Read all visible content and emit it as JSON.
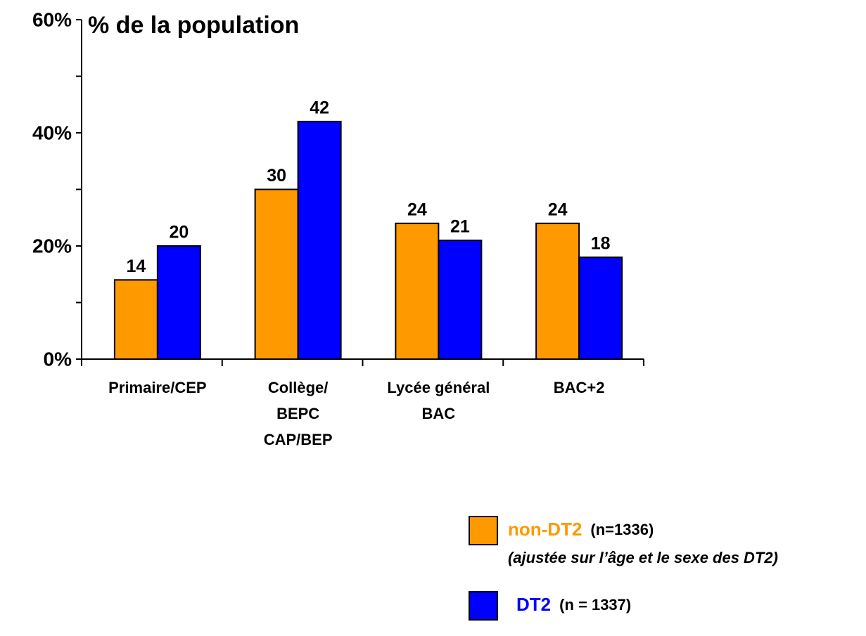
{
  "chart_data": {
    "type": "bar",
    "title": "% de la population",
    "categories": [
      [
        "Primaire/CEP"
      ],
      [
        "Collège/",
        "BEPC",
        "CAP/BEP"
      ],
      [
        "Lycée général",
        "BAC"
      ],
      [
        "BAC+2"
      ]
    ],
    "series": [
      {
        "name": "non-DT2",
        "n_label": "(n=1336)",
        "note": "(ajustée sur l’âge et le sexe des DT2)",
        "color": "#ff9900",
        "values": [
          14,
          30,
          24,
          24
        ]
      },
      {
        "name": "DT2",
        "n_label": "(n = 1337)",
        "color": "#0000ff",
        "values": [
          20,
          42,
          21,
          18
        ]
      }
    ],
    "ylim": [
      0,
      60
    ],
    "yticks": [
      {
        "value": 0,
        "label": "0%"
      },
      {
        "value": 20,
        "label": "20%"
      },
      {
        "value": 40,
        "label": "40%"
      },
      {
        "value": 60,
        "label": "60%"
      }
    ],
    "minor_yticks": [
      10,
      30,
      50
    ],
    "legend": "bottom-right"
  }
}
